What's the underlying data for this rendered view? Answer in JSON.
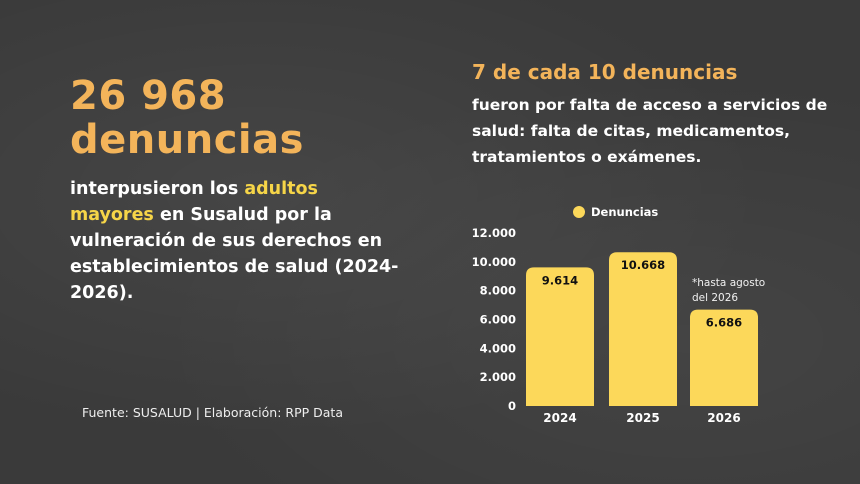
{
  "headline": {
    "number": "26 968",
    "word": "denuncias"
  },
  "description": {
    "part1": "interpusieron los ",
    "highlight": "adultos mayores",
    "part2": " en Susalud por la vulneración de sus derechos en establecimientos de salud (2024-2026)."
  },
  "source": "Fuente: SUSALUD | Elaboración: RPP Data",
  "right": {
    "title": "7 de cada 10 denuncias",
    "subtitle": "fueron por falta de acceso a servicios de salud: falta de citas, medicamentos, tratamientos o exámenes."
  },
  "colors": {
    "accent_orange": "#f3b45a",
    "highlight_yellow": "#f6d548",
    "bar_yellow": "#fcd85a",
    "background": "#3a3a3a"
  },
  "chart_data": {
    "type": "bar",
    "categories": [
      "2024",
      "2025",
      "2026"
    ],
    "series": [
      {
        "name": "Denuncias",
        "values": [
          9614,
          10668,
          6686
        ]
      }
    ],
    "data_labels": [
      "9.614",
      "10.668",
      "6.686"
    ],
    "ylim": [
      0,
      12000
    ],
    "yticks": [
      0,
      2000,
      4000,
      6000,
      8000,
      10000,
      12000
    ],
    "ytick_labels": [
      "0",
      "2.000",
      "4.000",
      "6.000",
      "8.000",
      "10.000",
      "12.000"
    ],
    "legend": "top-center",
    "grid": false,
    "annotation": "*hasta agosto del 2026"
  }
}
